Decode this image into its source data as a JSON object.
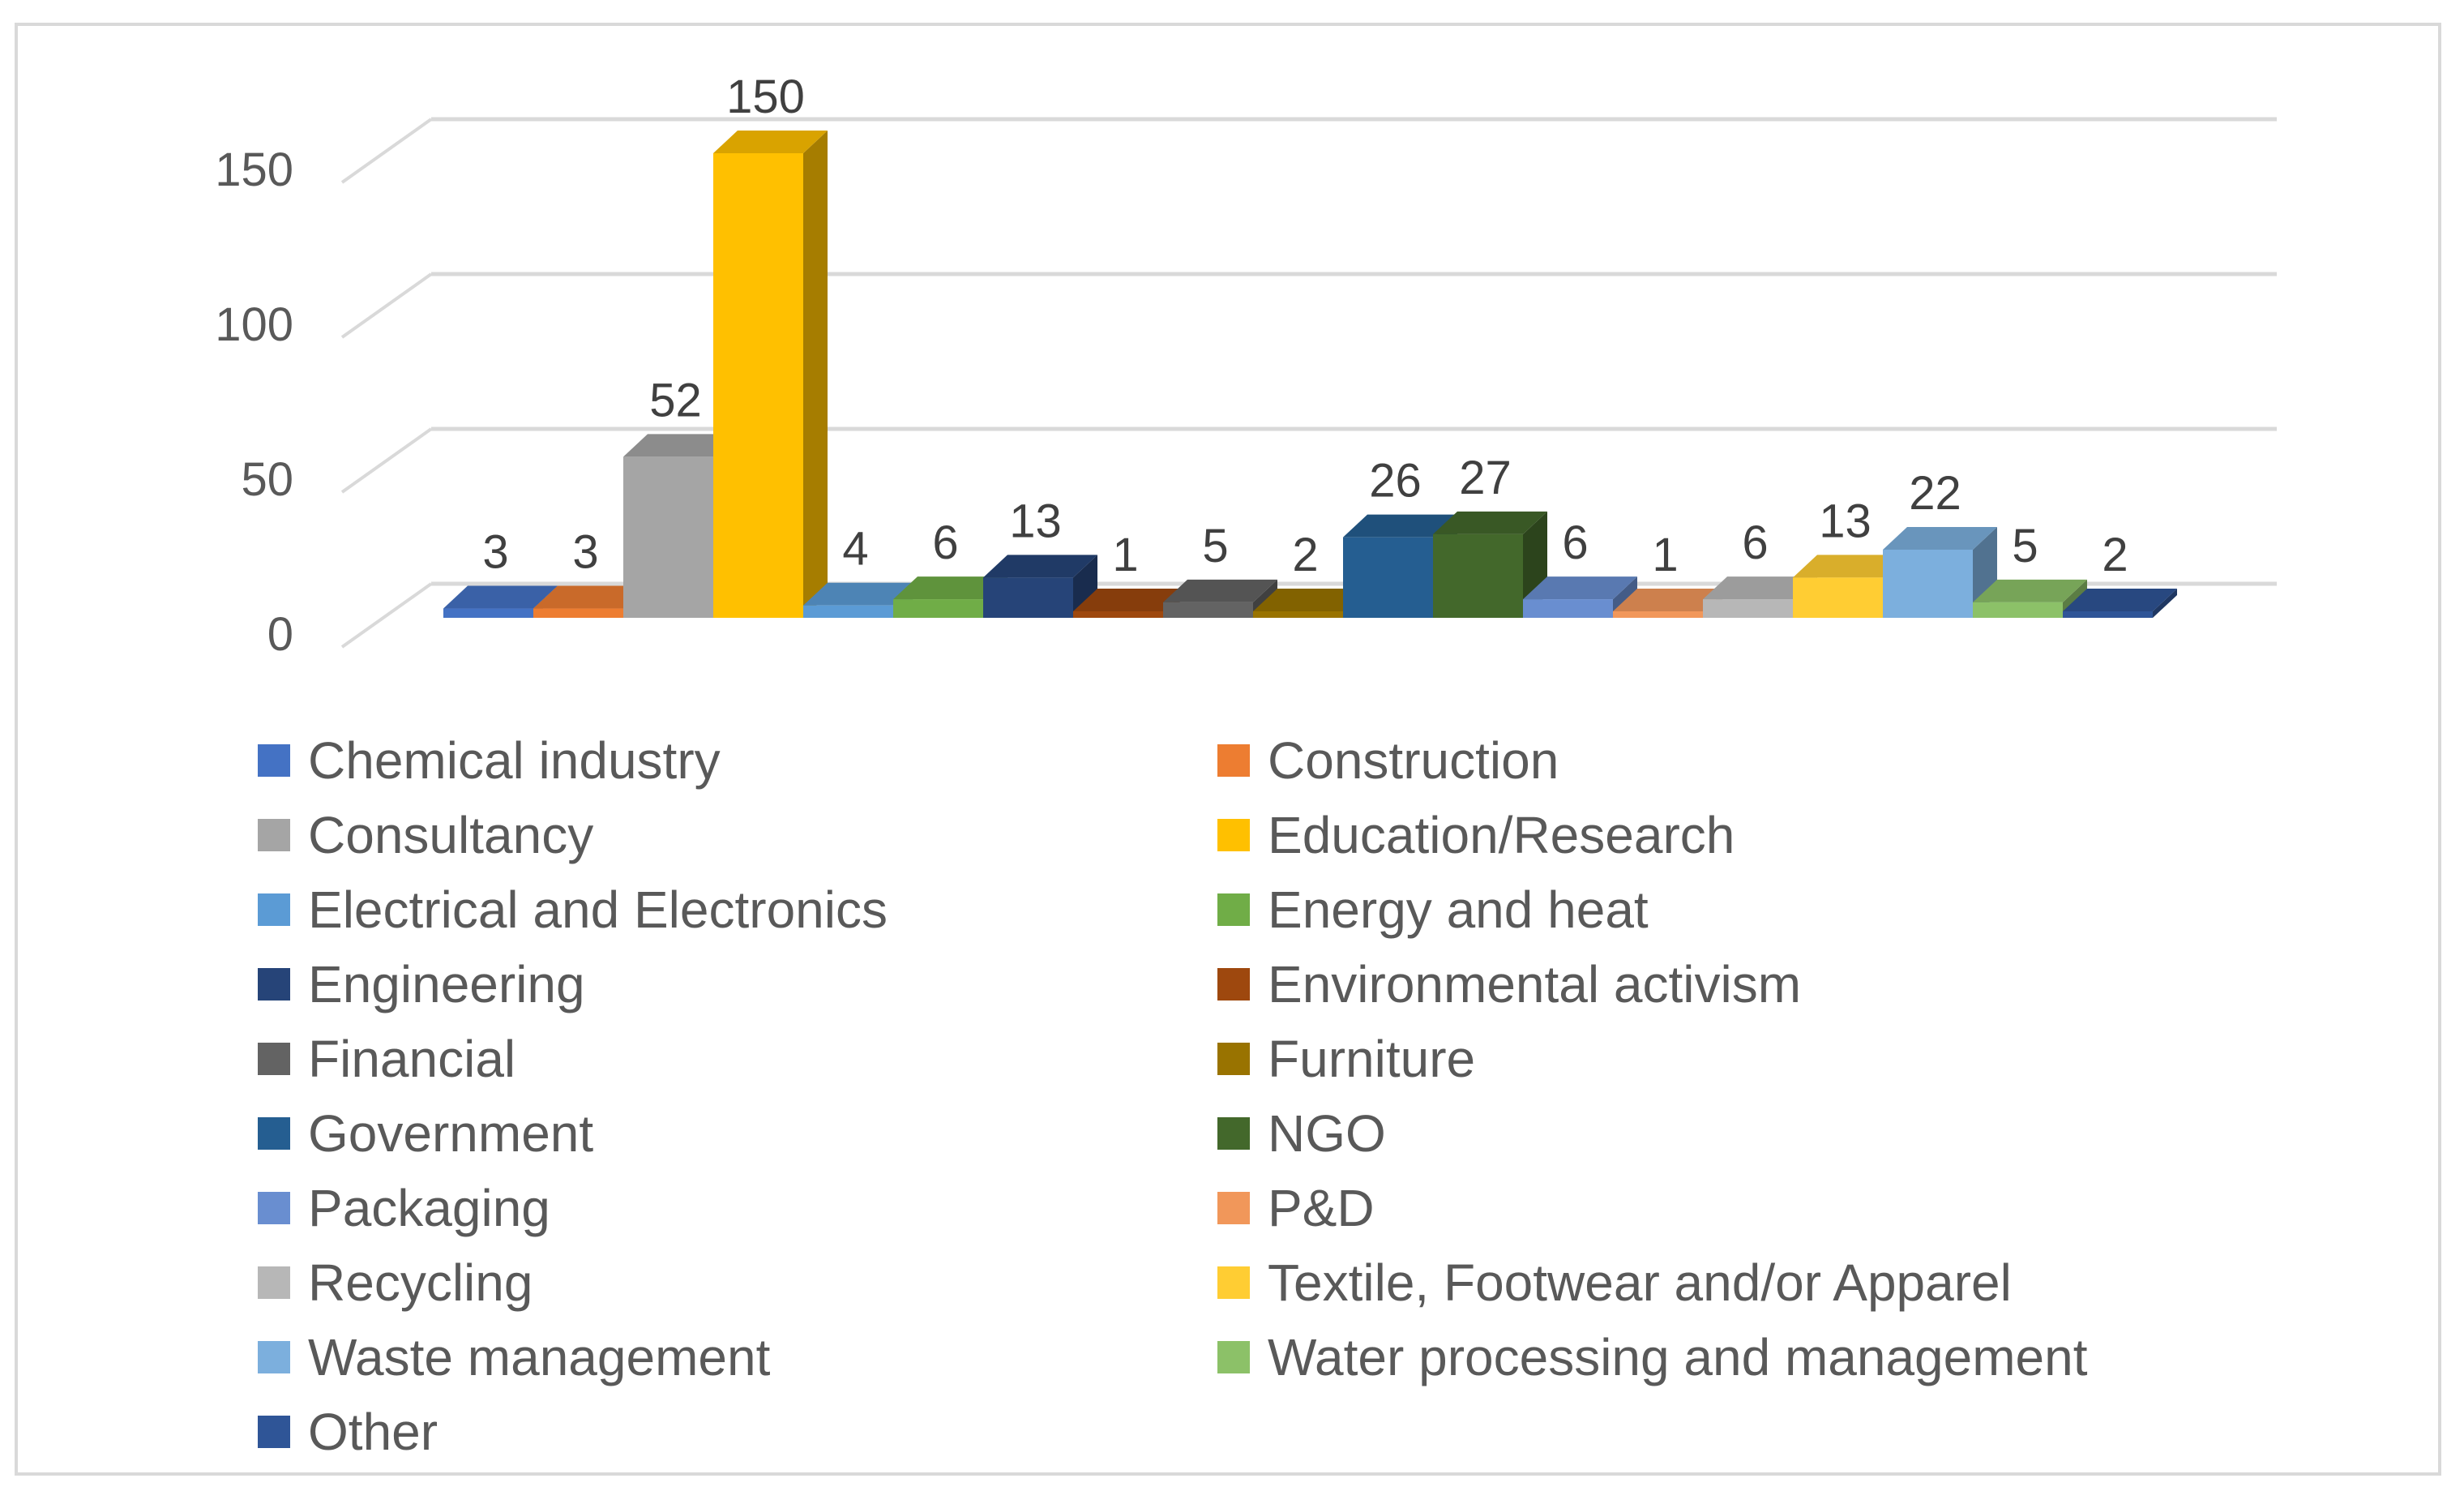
{
  "chart_data": {
    "type": "bar",
    "title": "",
    "xlabel": "",
    "ylabel": "",
    "ylim": [
      0,
      150
    ],
    "yticks": [
      0,
      50,
      100,
      150
    ],
    "grid": true,
    "legend_position": "bottom",
    "categories": [
      "Chemical industry",
      "Construction",
      "Consultancy",
      "Education/Research",
      "Electrical and Electronics",
      "Energy and heat",
      "Engineering",
      "Environmental activism",
      "Financial",
      "Furniture",
      "Government",
      "NGO",
      "Packaging",
      "P&D",
      "Recycling",
      "Textile, Footwear and/or Apparel",
      "Waste management",
      "Water processing and management",
      "Other"
    ],
    "values": [
      3,
      3,
      52,
      150,
      4,
      6,
      13,
      1,
      5,
      2,
      26,
      27,
      6,
      1,
      6,
      13,
      22,
      5,
      2
    ],
    "colors": [
      "#4472c4",
      "#ed7d31",
      "#a5a5a5",
      "#ffc000",
      "#5b9bd5",
      "#70ad47",
      "#264478",
      "#9e480e",
      "#636363",
      "#997300",
      "#255e91",
      "#43682b",
      "#698ed0",
      "#f1975a",
      "#b7b7b7",
      "#ffcd33",
      "#7cafdd",
      "#8cc168",
      "#2f5597"
    ]
  }
}
